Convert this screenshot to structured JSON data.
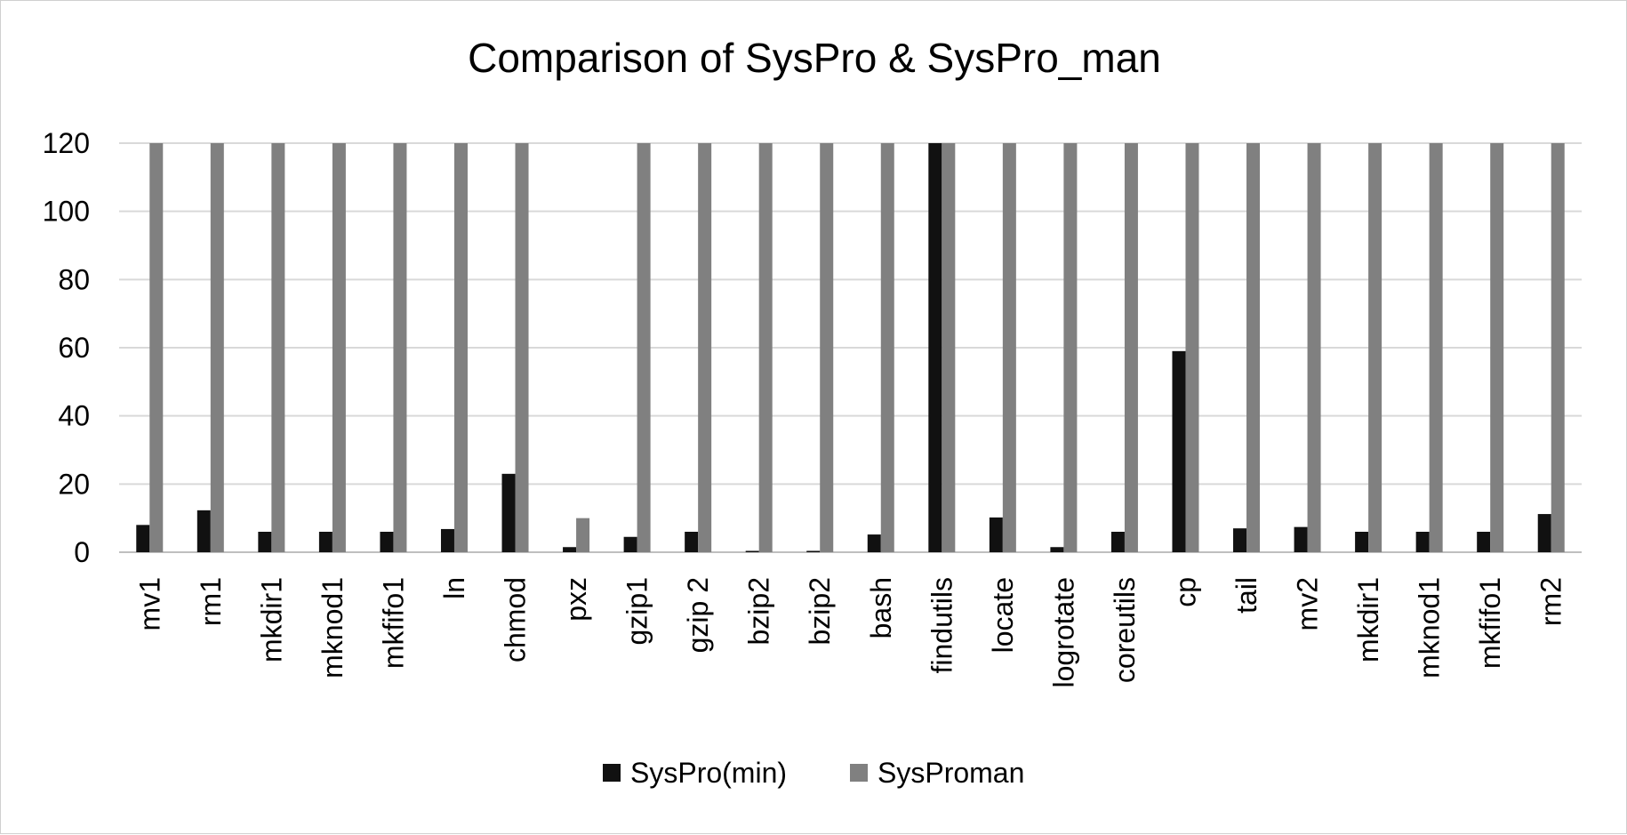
{
  "chart_data": {
    "type": "bar",
    "title": "Comparison of SysPro & SysPro_man",
    "xlabel": "",
    "ylabel": "",
    "ylim": [
      0,
      120
    ],
    "yticks": [
      0,
      20,
      40,
      60,
      80,
      100,
      120
    ],
    "grid": true,
    "legend_position": "bottom",
    "categories": [
      "mv1",
      "rm1",
      "mkdir1",
      "mknod1",
      "mkfifo1",
      "ln",
      "chmod",
      "pxz",
      "gzip1",
      "gzip 2",
      "bzip2",
      "bzip2",
      "bash",
      "findutils",
      "locate",
      "logrotate",
      "coreutils",
      "cp",
      "tail",
      "mv2",
      "mkdir1",
      "mknod1",
      "mkfifo1",
      "rm2"
    ],
    "series": [
      {
        "name": "SysPro(min)",
        "color": "#111111",
        "values": [
          8,
          12.3,
          6,
          6,
          6,
          6.8,
          23,
          1.5,
          4.5,
          6,
          0.4,
          0.4,
          5.2,
          120,
          10.2,
          1.5,
          6,
          59,
          7,
          7.4,
          6,
          6,
          6,
          11.2
        ]
      },
      {
        "name": "SysProman",
        "color": "#808080",
        "values": [
          120,
          120,
          120,
          120,
          120,
          120,
          120,
          10,
          120,
          120,
          120,
          120,
          120,
          120,
          120,
          120,
          120,
          120,
          120,
          120,
          120,
          120,
          120,
          120
        ]
      }
    ]
  }
}
